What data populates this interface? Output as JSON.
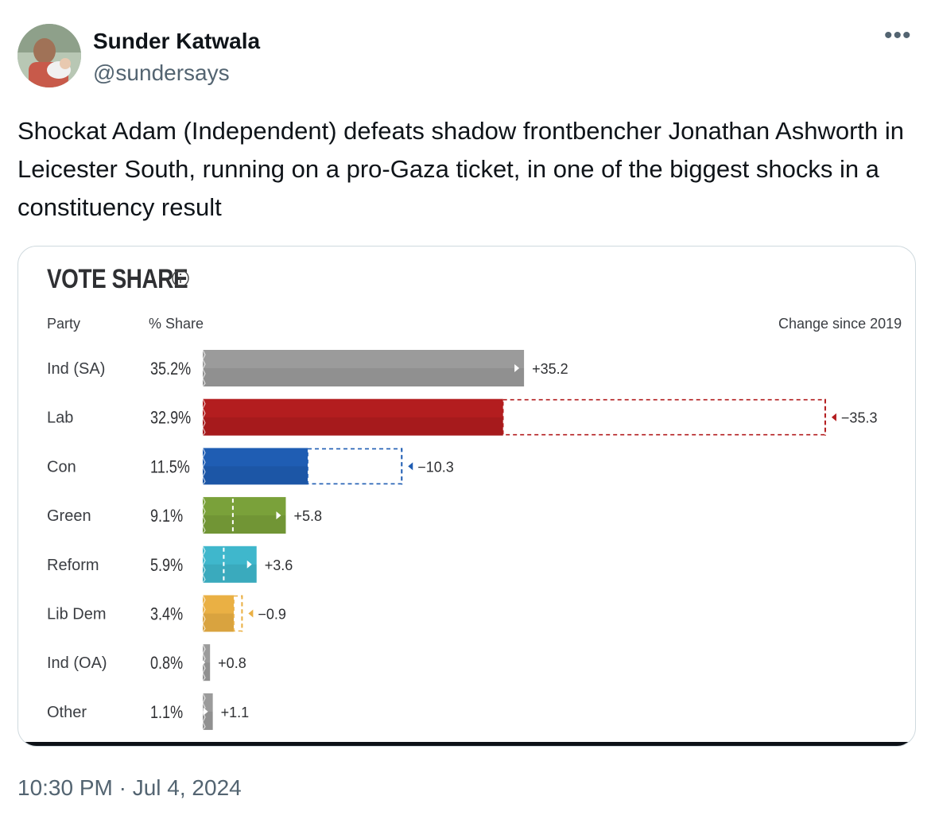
{
  "tweet": {
    "author_name": "Sunder Katwala",
    "author_handle": "@sundersays",
    "more_icon": "more-icon",
    "text": "Shockat Adam (Independent) defeats shadow frontbencher Jonathan Ashworth in Leicester South, running on a pro-Gaza ticket, in one of the biggest shocks in a constituency result",
    "timestamp": "10:30 PM · Jul 4, 2024"
  },
  "card": {
    "title": "VOTE SHARE",
    "col_party": "Party",
    "col_share": "% Share",
    "col_change": "Change since 2019"
  },
  "chart_data": {
    "type": "bar",
    "title": "VOTE SHARE",
    "xlabel": "% Share",
    "ylabel": "Party",
    "change_label": "Change since 2019",
    "categories": [
      "Ind (SA)",
      "Lab",
      "Con",
      "Green",
      "Reform",
      "Lib Dem",
      "Ind (OA)",
      "Other"
    ],
    "share_labels": [
      "35.2%",
      "32.9%",
      "11.5%",
      "9.1%",
      "5.9%",
      "3.4%",
      "0.8%",
      "1.1%"
    ],
    "values": [
      35.2,
      32.9,
      11.5,
      9.1,
      5.9,
      3.4,
      0.8,
      1.1
    ],
    "change": [
      35.2,
      -35.3,
      -10.3,
      5.8,
      3.6,
      -0.9,
      0.8,
      1.1
    ],
    "change_labels": [
      "+35.2",
      "−35.3",
      "−10.3",
      "+5.8",
      "+3.6",
      "−0.9",
      "+0.8",
      "+1.1"
    ],
    "colors": [
      "#9b9b9b",
      "#b31d1f",
      "#1f5db3",
      "#7aa13a",
      "#3fb7cc",
      "#eab044",
      "#9b9b9b",
      "#9b9b9b"
    ],
    "xlim": [
      0,
      70
    ]
  }
}
